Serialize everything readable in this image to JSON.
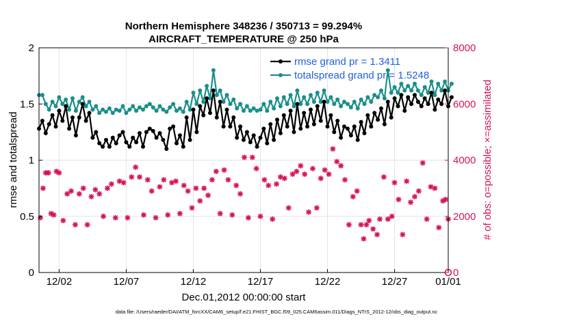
{
  "chart_data": {
    "type": "line",
    "title_line1": "Northern Hemisphere 348236 / 350713 = 99.294%",
    "title_line2": "AIRCRAFT_TEMPERATURE @ 250 hPa",
    "xlabel": "Dec.01,2012 00:00:00 start",
    "ylabel_left": "rmse and totalspread",
    "ylabel_right": "# of obs: o=possible; ×=assimilated",
    "xlim": [
      0.5,
      31.0
    ],
    "ylim_left": [
      0,
      2
    ],
    "ylim_right": [
      0,
      8000
    ],
    "x_ticks": [
      {
        "label": "12/02",
        "x": 2
      },
      {
        "label": "12/07",
        "x": 7
      },
      {
        "label": "12/12",
        "x": 12
      },
      {
        "label": "12/17",
        "x": 17
      },
      {
        "label": "12/22",
        "x": 22
      },
      {
        "label": "12/27",
        "x": 27
      },
      {
        "label": "01/01",
        "x": 31
      }
    ],
    "y_ticks_left": [
      "0",
      "0.5",
      "1",
      "1.5",
      "2"
    ],
    "y_ticks_right": [
      "0",
      "2000",
      "4000",
      "6000",
      "8000"
    ],
    "grid": true,
    "legend_position": "top-right",
    "colors": {
      "rmse": "#000000",
      "spread": "#1a8f8a",
      "obs": "#d6125a",
      "grid": "#e3e3e3",
      "legend_text": "#1f5fe0"
    },
    "series": [
      {
        "name": "rmse grand pr = 1.3411",
        "x_start": 0.5,
        "x_step": 0.25,
        "values": [
          1.28,
          1.35,
          1.24,
          1.32,
          1.4,
          1.3,
          1.44,
          1.35,
          1.48,
          1.28,
          1.38,
          1.22,
          1.38,
          1.5,
          1.35,
          1.42,
          1.2,
          1.25,
          1.15,
          1.12,
          1.18,
          1.12,
          1.2,
          1.15,
          1.22,
          1.25,
          1.16,
          1.12,
          1.2,
          1.16,
          1.24,
          1.12,
          1.25,
          1.28,
          1.26,
          1.2,
          1.24,
          1.18,
          1.1,
          1.28,
          1.3,
          1.15,
          1.22,
          1.12,
          1.38,
          1.18,
          1.45,
          1.25,
          1.48,
          1.4,
          1.55,
          1.42,
          1.62,
          1.38,
          1.52,
          1.3,
          1.45,
          1.3,
          1.38,
          1.2,
          1.3,
          1.18,
          1.25,
          1.16,
          1.22,
          1.12,
          1.2,
          1.28,
          1.15,
          1.32,
          1.18,
          1.36,
          1.24,
          1.4,
          1.3,
          1.44,
          1.25,
          1.5,
          1.28,
          1.42,
          1.3,
          1.45,
          1.32,
          1.48,
          1.35,
          1.52,
          1.3,
          1.4,
          1.25,
          1.35,
          1.2,
          1.3,
          1.28,
          1.22,
          1.3,
          1.18,
          1.34,
          1.24,
          1.4,
          1.3,
          1.42,
          1.36,
          1.46,
          1.32,
          1.52,
          1.38,
          1.55,
          1.48,
          1.58,
          1.44,
          1.56,
          1.5,
          1.58,
          1.52,
          1.48,
          1.55,
          1.5,
          1.6,
          1.45,
          1.54,
          1.5,
          1.62,
          1.48,
          1.56
        ]
      },
      {
        "name": "totalspread grand pr = 1.5248",
        "x_start": 0.5,
        "x_step": 0.25,
        "values": [
          1.58,
          1.58,
          1.5,
          1.45,
          1.52,
          1.48,
          1.56,
          1.5,
          1.54,
          1.45,
          1.55,
          1.44,
          1.52,
          1.56,
          1.48,
          1.52,
          1.45,
          1.48,
          1.42,
          1.45,
          1.43,
          1.46,
          1.42,
          1.45,
          1.44,
          1.48,
          1.42,
          1.45,
          1.48,
          1.44,
          1.47,
          1.45,
          1.48,
          1.5,
          1.47,
          1.44,
          1.48,
          1.45,
          1.43,
          1.47,
          1.5,
          1.44,
          1.46,
          1.43,
          1.52,
          1.45,
          1.6,
          1.5,
          1.62,
          1.52,
          1.66,
          1.55,
          1.8,
          1.58,
          1.62,
          1.52,
          1.58,
          1.5,
          1.54,
          1.46,
          1.5,
          1.44,
          1.48,
          1.44,
          1.46,
          1.44,
          1.45,
          1.5,
          1.44,
          1.52,
          1.46,
          1.55,
          1.48,
          1.56,
          1.5,
          1.58,
          1.48,
          1.62,
          1.5,
          1.56,
          1.5,
          1.58,
          1.52,
          1.6,
          1.52,
          1.62,
          1.52,
          1.56,
          1.5,
          1.54,
          1.48,
          1.52,
          1.5,
          1.47,
          1.52,
          1.46,
          1.54,
          1.5,
          1.56,
          1.52,
          1.58,
          1.56,
          1.62,
          1.55,
          1.8,
          1.6,
          1.65,
          1.6,
          1.68,
          1.62,
          1.66,
          1.62,
          1.68,
          1.62,
          1.58,
          1.65,
          1.6,
          1.7,
          1.58,
          1.68,
          1.62,
          1.7,
          1.62,
          1.68
        ]
      },
      {
        "name": "observations assimilated",
        "axis": "right",
        "points": [
          [
            0.6,
            1950
          ],
          [
            0.8,
            3000
          ],
          [
            1.0,
            3550
          ],
          [
            1.2,
            3550
          ],
          [
            1.4,
            2100
          ],
          [
            1.6,
            2050
          ],
          [
            1.8,
            3600
          ],
          [
            2.0,
            3550
          ],
          [
            2.3,
            1850
          ],
          [
            2.6,
            2800
          ],
          [
            2.9,
            2900
          ],
          [
            3.2,
            1700
          ],
          [
            3.5,
            2800
          ],
          [
            3.8,
            3000
          ],
          [
            4.1,
            1700
          ],
          [
            4.4,
            2700
          ],
          [
            4.7,
            2950
          ],
          [
            5.0,
            2800
          ],
          [
            5.3,
            2000
          ],
          [
            5.6,
            3000
          ],
          [
            5.9,
            3150
          ],
          [
            6.2,
            1950
          ],
          [
            6.5,
            3250
          ],
          [
            6.8,
            3200
          ],
          [
            7.1,
            1950
          ],
          [
            7.4,
            3400
          ],
          [
            7.7,
            3750
          ],
          [
            8.0,
            3400
          ],
          [
            8.3,
            2050
          ],
          [
            8.6,
            3300
          ],
          [
            8.9,
            2900
          ],
          [
            9.2,
            1950
          ],
          [
            9.5,
            3050
          ],
          [
            9.8,
            3300
          ],
          [
            10.1,
            2050
          ],
          [
            10.4,
            3200
          ],
          [
            10.7,
            3250
          ],
          [
            11.0,
            2100
          ],
          [
            11.3,
            3100
          ],
          [
            11.6,
            2900
          ],
          [
            11.9,
            2300
          ],
          [
            12.2,
            3000
          ],
          [
            12.5,
            2550
          ],
          [
            12.8,
            3000
          ],
          [
            13.1,
            2750
          ],
          [
            13.4,
            3300
          ],
          [
            13.7,
            3600
          ],
          [
            14.0,
            2100
          ],
          [
            14.3,
            3650
          ],
          [
            14.6,
            3300
          ],
          [
            14.9,
            2050
          ],
          [
            15.2,
            3100
          ],
          [
            15.5,
            2800
          ],
          [
            15.8,
            4100
          ],
          [
            16.1,
            1950
          ],
          [
            16.4,
            4100
          ],
          [
            16.7,
            3700
          ],
          [
            17.0,
            2000
          ],
          [
            17.3,
            3300
          ],
          [
            17.6,
            3100
          ],
          [
            17.9,
            1900
          ],
          [
            18.2,
            3150
          ],
          [
            18.5,
            3400
          ],
          [
            18.8,
            3350
          ],
          [
            19.1,
            2300
          ],
          [
            19.4,
            3500
          ],
          [
            19.7,
            3600
          ],
          [
            20.0,
            3800
          ],
          [
            20.3,
            3500
          ],
          [
            20.6,
            2150
          ],
          [
            20.9,
            3700
          ],
          [
            21.2,
            2300
          ],
          [
            21.5,
            3350
          ],
          [
            21.8,
            3650
          ],
          [
            22.1,
            3500
          ],
          [
            22.4,
            4400
          ],
          [
            22.7,
            3950
          ],
          [
            23.0,
            3800
          ],
          [
            23.3,
            3300
          ],
          [
            23.6,
            1700
          ],
          [
            23.9,
            2700
          ],
          [
            24.2,
            2900
          ],
          [
            24.5,
            1700
          ],
          [
            24.7,
            1200
          ],
          [
            24.9,
            1700
          ],
          [
            25.1,
            1850
          ],
          [
            25.4,
            1550
          ],
          [
            25.7,
            1350
          ],
          [
            25.9,
            1900
          ],
          [
            26.2,
            3400
          ],
          [
            26.5,
            1900
          ],
          [
            26.8,
            2000
          ],
          [
            27.0,
            3200
          ],
          [
            27.3,
            2600
          ],
          [
            27.6,
            1350
          ],
          [
            27.9,
            3250
          ],
          [
            28.2,
            2500
          ],
          [
            28.5,
            2700
          ],
          [
            28.8,
            2900
          ],
          [
            29.1,
            3900
          ],
          [
            29.4,
            1900
          ],
          [
            29.7,
            3050
          ],
          [
            30.0,
            3000
          ],
          [
            30.3,
            1600
          ],
          [
            30.6,
            2550
          ],
          [
            30.8,
            2600
          ],
          [
            31.0,
            1900
          ]
        ]
      }
    ],
    "obs_possible_marker": {
      "x": 31.0,
      "value": 0
    }
  },
  "footer": "data file: /Users/raeder/DAI/ATM_forcXX/CAM6_setup/f.e21.FHIST_BGC.f09_025.CAM6assim.011/Diags_NTrS_2012-12/obs_diag_output.nc"
}
